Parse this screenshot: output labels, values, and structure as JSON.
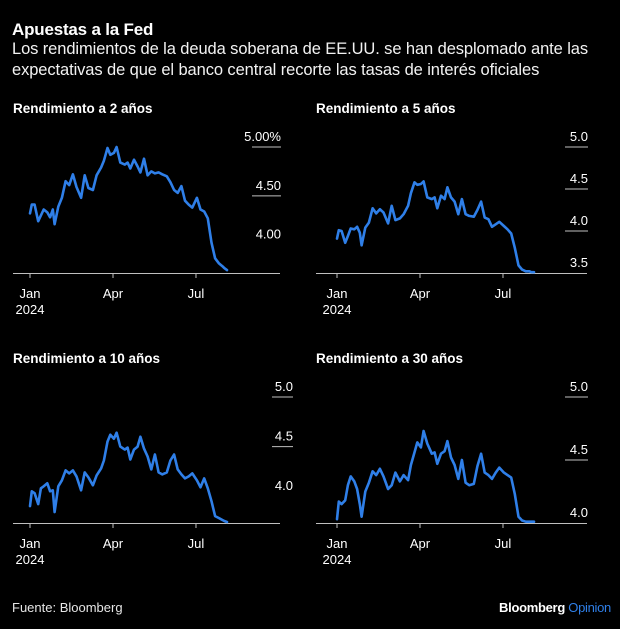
{
  "header": {
    "title": "Apuestas a la Fed",
    "subtitle": "Los rendimientos de la deuda soberana de EE.UU. se han desplomado ante las expectativas de que el banco central recorte las tasas de interés oficiales"
  },
  "footer": {
    "source": "Fuente: Bloomberg",
    "brand": "Bloomberg",
    "brand_suffix": "Opinion"
  },
  "colors": {
    "background": "#000000",
    "line": "#2f7fe8",
    "axis": "#bfbfbf",
    "text": "#ffffff"
  },
  "chart_data": [
    {
      "type": "line",
      "title": "Rendimiento a 2 años",
      "xlabel": "",
      "ylabel": "",
      "x_ticks": [
        "Jan\n2024",
        "Apr",
        "Jul"
      ],
      "y_ticks": [
        "5.00%",
        "4.50",
        "4.00"
      ],
      "y_tick_values": [
        5.0,
        4.5,
        4.0
      ],
      "y_gridlines": [
        5.0,
        4.5
      ],
      "ylim": [
        3.71,
        5.0
      ],
      "x_unit": "days since Jan 1 2024",
      "x": [
        0,
        2,
        5,
        9,
        12,
        15,
        19,
        22,
        25,
        27,
        31,
        35,
        39,
        43,
        47,
        51,
        56,
        60,
        64,
        69,
        73,
        78,
        81,
        85,
        88,
        92,
        95,
        99,
        104,
        107,
        110,
        114,
        118,
        121,
        125,
        129,
        133,
        137,
        141,
        145,
        150,
        154,
        158,
        162,
        166,
        170,
        174,
        178,
        183,
        187,
        191,
        195,
        199,
        203,
        207,
        211,
        213,
        216
      ],
      "series": [
        {
          "name": "Rendimiento a 2 años",
          "values": [
            4.32,
            4.41,
            4.41,
            4.24,
            4.3,
            4.36,
            4.33,
            4.28,
            4.36,
            4.21,
            4.39,
            4.48,
            4.65,
            4.61,
            4.72,
            4.59,
            4.48,
            4.71,
            4.58,
            4.56,
            4.71,
            4.79,
            4.86,
            4.99,
            4.92,
            4.94,
            5.0,
            4.84,
            4.82,
            4.84,
            4.78,
            4.87,
            4.8,
            4.74,
            4.88,
            4.71,
            4.75,
            4.73,
            4.74,
            4.72,
            4.7,
            4.64,
            4.56,
            4.53,
            4.6,
            4.45,
            4.41,
            4.38,
            4.48,
            4.36,
            4.34,
            4.27,
            4.02,
            3.86,
            3.81,
            3.78,
            3.76,
            3.74
          ]
        }
      ]
    },
    {
      "type": "line",
      "title": "Rendimiento a 5 años",
      "xlabel": "",
      "ylabel": "",
      "x_ticks": [
        "Jan\n2024",
        "Apr",
        "Jul"
      ],
      "y_ticks": [
        "5.0",
        "4.5",
        "4.0",
        "3.5"
      ],
      "y_tick_values": [
        5.0,
        4.5,
        4.0,
        3.5
      ],
      "y_gridlines": [
        5.0,
        4.5,
        4.0
      ],
      "ylim": [
        3.5,
        5.0
      ],
      "x_unit": "days since Jan 1 2024",
      "x": [
        0,
        2,
        5,
        9,
        12,
        15,
        19,
        22,
        25,
        27,
        31,
        35,
        39,
        43,
        47,
        51,
        56,
        60,
        64,
        69,
        73,
        78,
        81,
        85,
        88,
        92,
        95,
        99,
        104,
        107,
        110,
        114,
        118,
        121,
        125,
        129,
        133,
        137,
        141,
        145,
        150,
        154,
        158,
        162,
        166,
        170,
        174,
        178,
        183,
        187,
        191,
        195,
        199,
        203,
        207,
        211,
        213,
        216
      ],
      "series": [
        {
          "name": "Rendimiento a 5 años",
          "values": [
            3.91,
            4.01,
            4.0,
            3.86,
            3.94,
            4.03,
            4.02,
            4.05,
            3.98,
            3.83,
            4.04,
            4.1,
            4.27,
            4.21,
            4.26,
            4.22,
            4.09,
            4.3,
            4.13,
            4.15,
            4.2,
            4.3,
            4.45,
            4.58,
            4.55,
            4.56,
            4.59,
            4.4,
            4.38,
            4.4,
            4.27,
            4.42,
            4.38,
            4.52,
            4.4,
            4.35,
            4.2,
            4.38,
            4.2,
            4.18,
            4.17,
            4.25,
            4.35,
            4.16,
            4.14,
            4.05,
            4.08,
            4.11,
            4.06,
            4.02,
            3.97,
            3.8,
            3.59,
            3.54,
            3.52,
            3.52,
            3.51,
            3.51
          ]
        }
      ]
    },
    {
      "type": "line",
      "title": "Rendimiento a 10 años",
      "xlabel": "",
      "ylabel": "",
      "x_ticks": [
        "Jan\n2024",
        "Apr",
        "Jul"
      ],
      "y_ticks": [
        "5.0",
        "4.5",
        "4.0"
      ],
      "y_tick_values": [
        5.0,
        4.5,
        4.0
      ],
      "y_gridlines": [
        5.0,
        4.5
      ],
      "ylim": [
        3.73,
        5.0
      ],
      "x_unit": "days since Jan 1 2024",
      "x": [
        0,
        2,
        5,
        9,
        12,
        15,
        19,
        22,
        25,
        27,
        31,
        35,
        39,
        43,
        47,
        51,
        56,
        60,
        64,
        69,
        73,
        78,
        81,
        85,
        88,
        92,
        95,
        99,
        104,
        107,
        110,
        114,
        118,
        121,
        125,
        129,
        133,
        137,
        141,
        145,
        150,
        154,
        158,
        162,
        166,
        170,
        174,
        178,
        183,
        187,
        191,
        195,
        199,
        203,
        207,
        211,
        213,
        216
      ],
      "series": [
        {
          "name": "Rendimiento a 10 años",
          "values": [
            3.9,
            4.05,
            4.03,
            3.92,
            4.08,
            4.1,
            4.13,
            4.05,
            4.06,
            3.84,
            4.1,
            4.16,
            4.26,
            4.23,
            4.26,
            4.2,
            4.06,
            4.24,
            4.19,
            4.11,
            4.21,
            4.28,
            4.36,
            4.55,
            4.62,
            4.58,
            4.64,
            4.5,
            4.47,
            4.49,
            4.37,
            4.47,
            4.5,
            4.6,
            4.48,
            4.4,
            4.27,
            4.42,
            4.24,
            4.22,
            4.24,
            4.36,
            4.42,
            4.27,
            4.22,
            4.18,
            4.2,
            4.23,
            4.16,
            4.09,
            4.18,
            4.08,
            3.95,
            3.8,
            3.78,
            3.76,
            3.75,
            3.74
          ]
        }
      ]
    },
    {
      "type": "line",
      "title": "Rendimiento a 30 años",
      "xlabel": "",
      "ylabel": "",
      "x_ticks": [
        "Jan\n2024",
        "Apr",
        "Jul"
      ],
      "y_ticks": [
        "5.0",
        "4.5",
        "4.0"
      ],
      "y_tick_values": [
        5.0,
        4.5,
        4.0
      ],
      "y_gridlines": [
        5.0,
        4.5
      ],
      "ylim": [
        4.0,
        5.0
      ],
      "x_unit": "days since Jan 1 2024",
      "x": [
        0,
        2,
        5,
        9,
        12,
        15,
        19,
        22,
        25,
        27,
        31,
        35,
        39,
        43,
        47,
        51,
        56,
        60,
        64,
        69,
        73,
        78,
        81,
        85,
        88,
        92,
        95,
        99,
        104,
        107,
        110,
        114,
        118,
        121,
        125,
        129,
        133,
        137,
        141,
        145,
        150,
        154,
        158,
        162,
        166,
        170,
        174,
        178,
        183,
        187,
        191,
        195,
        199,
        203,
        207,
        211,
        213,
        216
      ],
      "series": [
        {
          "name": "Rendimiento a 30 años",
          "values": [
            4.03,
            4.17,
            4.15,
            4.18,
            4.3,
            4.37,
            4.33,
            4.27,
            4.15,
            4.05,
            4.25,
            4.32,
            4.41,
            4.38,
            4.43,
            4.37,
            4.27,
            4.3,
            4.4,
            4.33,
            4.38,
            4.34,
            4.46,
            4.56,
            4.64,
            4.6,
            4.73,
            4.63,
            4.55,
            4.56,
            4.47,
            4.55,
            4.57,
            4.65,
            4.52,
            4.46,
            4.35,
            4.5,
            4.32,
            4.3,
            4.31,
            4.45,
            4.55,
            4.4,
            4.38,
            4.35,
            4.4,
            4.44,
            4.4,
            4.38,
            4.36,
            4.23,
            4.05,
            4.02,
            4.01,
            4.01,
            4.01,
            4.01
          ]
        }
      ]
    }
  ]
}
